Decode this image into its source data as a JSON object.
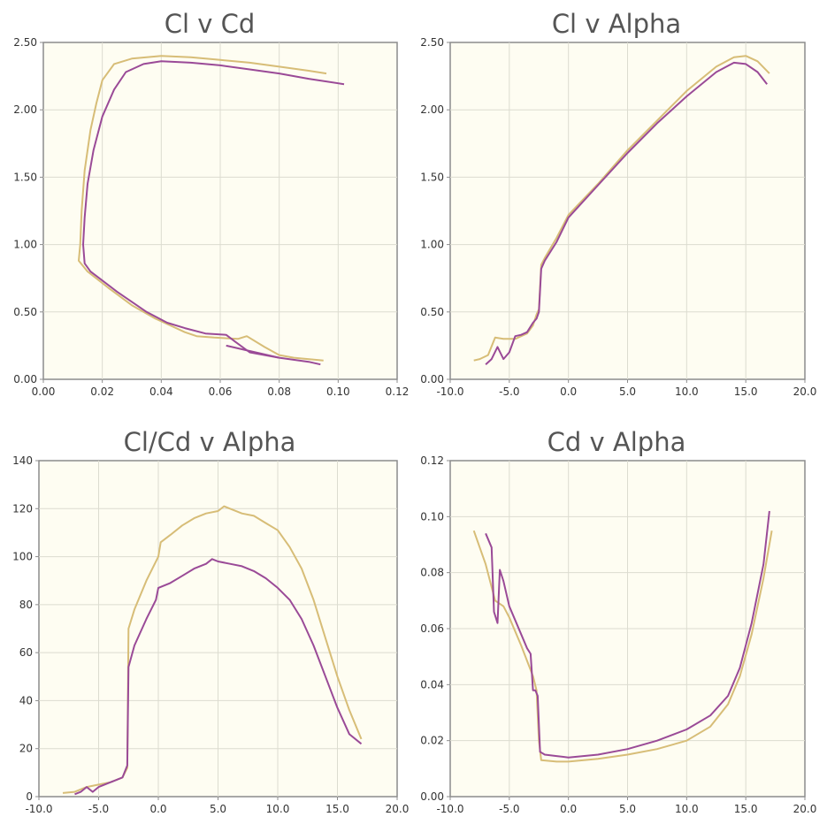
{
  "colors": {
    "plot_bg": "#fefdf2",
    "grid": "#dcdcd0",
    "axis": "#8c8c8c",
    "series_gold": "#d7bd77",
    "series_purple": "#9a4a97"
  },
  "chart_data": [
    {
      "type": "line",
      "title": "Cl v Cd",
      "xlim": [
        0,
        0.12
      ],
      "ylim": [
        0,
        2.5
      ],
      "xticks": [
        "0.00",
        "0.02",
        "0.04",
        "0.06",
        "0.08",
        "0.10",
        "0.12"
      ],
      "yticks": [
        "0.00",
        "0.50",
        "1.00",
        "1.50",
        "2.00",
        "2.50"
      ],
      "grid": true,
      "series": [
        {
          "color": "gold",
          "points": [
            [
              0.095,
              0.14
            ],
            [
              0.085,
              0.16
            ],
            [
              0.08,
              0.18
            ],
            [
              0.075,
              0.24
            ],
            [
              0.069,
              0.32
            ],
            [
              0.066,
              0.3
            ],
            [
              0.058,
              0.31
            ],
            [
              0.052,
              0.32
            ],
            [
              0.048,
              0.35
            ],
            [
              0.043,
              0.4
            ],
            [
              0.038,
              0.45
            ],
            [
              0.03,
              0.55
            ],
            [
              0.022,
              0.68
            ],
            [
              0.015,
              0.8
            ],
            [
              0.012,
              0.88
            ],
            [
              0.0125,
              1.0
            ],
            [
              0.013,
              1.25
            ],
            [
              0.014,
              1.55
            ],
            [
              0.016,
              1.85
            ],
            [
              0.018,
              2.05
            ],
            [
              0.02,
              2.22
            ],
            [
              0.024,
              2.34
            ],
            [
              0.03,
              2.38
            ],
            [
              0.04,
              2.4
            ],
            [
              0.05,
              2.39
            ],
            [
              0.06,
              2.37
            ],
            [
              0.07,
              2.35
            ],
            [
              0.08,
              2.32
            ],
            [
              0.09,
              2.29
            ],
            [
              0.096,
              2.27
            ]
          ]
        },
        {
          "color": "purple",
          "points": [
            [
              0.094,
              0.11
            ],
            [
              0.09,
              0.13
            ],
            [
              0.08,
              0.16
            ],
            [
              0.07,
              0.2
            ],
            [
              0.065,
              0.28
            ],
            [
              0.062,
              0.33
            ],
            [
              0.055,
              0.34
            ],
            [
              0.048,
              0.38
            ],
            [
              0.042,
              0.42
            ],
            [
              0.035,
              0.5
            ],
            [
              0.025,
              0.65
            ],
            [
              0.016,
              0.8
            ],
            [
              0.014,
              0.86
            ],
            [
              0.0135,
              1.0
            ],
            [
              0.014,
              1.2
            ],
            [
              0.015,
              1.45
            ],
            [
              0.017,
              1.7
            ],
            [
              0.02,
              1.95
            ],
            [
              0.024,
              2.15
            ],
            [
              0.028,
              2.28
            ],
            [
              0.034,
              2.34
            ],
            [
              0.04,
              2.36
            ],
            [
              0.05,
              2.35
            ],
            [
              0.06,
              2.33
            ],
            [
              0.07,
              2.3
            ],
            [
              0.08,
              2.27
            ],
            [
              0.09,
              2.23
            ],
            [
              0.102,
              2.19
            ]
          ]
        },
        {
          "color": "purple",
          "points": [
            [
              0.062,
              0.25
            ],
            [
              0.07,
              0.21
            ],
            [
              0.08,
              0.16
            ]
          ]
        }
      ]
    },
    {
      "type": "line",
      "title": "Cl v Alpha",
      "xlim": [
        -10,
        20
      ],
      "ylim": [
        0,
        2.5
      ],
      "xticks": [
        "-10.0",
        "-5.0",
        "0.0",
        "5.0",
        "10.0",
        "15.0",
        "20.0"
      ],
      "yticks": [
        "0.00",
        "0.50",
        "1.00",
        "1.50",
        "2.00",
        "2.50"
      ],
      "grid": true,
      "series": [
        {
          "color": "gold",
          "points": [
            [
              -8.0,
              0.14
            ],
            [
              -7.5,
              0.15
            ],
            [
              -6.8,
              0.18
            ],
            [
              -6.2,
              0.31
            ],
            [
              -5.5,
              0.3
            ],
            [
              -5.0,
              0.3
            ],
            [
              -4.5,
              0.3
            ],
            [
              -4.0,
              0.32
            ],
            [
              -3.5,
              0.34
            ],
            [
              -3.0,
              0.4
            ],
            [
              -2.7,
              0.48
            ],
            [
              -2.5,
              0.52
            ],
            [
              -2.3,
              0.85
            ],
            [
              -2.0,
              0.9
            ],
            [
              -1.0,
              1.05
            ],
            [
              0.0,
              1.22
            ],
            [
              2.5,
              1.45
            ],
            [
              5.0,
              1.7
            ],
            [
              7.5,
              1.92
            ],
            [
              10.0,
              2.14
            ],
            [
              12.5,
              2.32
            ],
            [
              14.0,
              2.39
            ],
            [
              15.0,
              2.4
            ],
            [
              16.0,
              2.36
            ],
            [
              17.0,
              2.27
            ]
          ]
        },
        {
          "color": "purple",
          "points": [
            [
              -7.0,
              0.11
            ],
            [
              -6.5,
              0.15
            ],
            [
              -6.0,
              0.24
            ],
            [
              -5.5,
              0.15
            ],
            [
              -5.0,
              0.2
            ],
            [
              -4.5,
              0.32
            ],
            [
              -4.0,
              0.33
            ],
            [
              -3.5,
              0.35
            ],
            [
              -3.0,
              0.42
            ],
            [
              -2.7,
              0.45
            ],
            [
              -2.5,
              0.5
            ],
            [
              -2.3,
              0.82
            ],
            [
              -2.0,
              0.88
            ],
            [
              -1.0,
              1.02
            ],
            [
              0.0,
              1.2
            ],
            [
              2.5,
              1.44
            ],
            [
              5.0,
              1.68
            ],
            [
              7.5,
              1.9
            ],
            [
              10.0,
              2.1
            ],
            [
              12.5,
              2.28
            ],
            [
              14.0,
              2.35
            ],
            [
              15.0,
              2.34
            ],
            [
              16.0,
              2.28
            ],
            [
              16.8,
              2.19
            ]
          ]
        }
      ]
    },
    {
      "type": "line",
      "title": "Cl/Cd v Alpha",
      "xlim": [
        -10,
        20
      ],
      "ylim": [
        0,
        140
      ],
      "xticks": [
        "-10.0",
        "-5.0",
        "0.0",
        "5.0",
        "10.0",
        "15.0",
        "20.0"
      ],
      "yticks": [
        "0",
        "20",
        "40",
        "60",
        "80",
        "100",
        "120",
        "140"
      ],
      "grid": true,
      "series": [
        {
          "color": "gold",
          "points": [
            [
              -8.0,
              1.5
            ],
            [
              -7.0,
              2
            ],
            [
              -6.0,
              4
            ],
            [
              -5.0,
              5
            ],
            [
              -4.0,
              6
            ],
            [
              -3.0,
              8
            ],
            [
              -2.6,
              12
            ],
            [
              -2.5,
              70
            ],
            [
              -2.0,
              78
            ],
            [
              -1.0,
              90
            ],
            [
              0.0,
              100
            ],
            [
              0.2,
              106
            ],
            [
              1.0,
              109
            ],
            [
              2.0,
              113
            ],
            [
              3.0,
              116
            ],
            [
              4.0,
              118
            ],
            [
              5.0,
              119
            ],
            [
              5.5,
              121
            ],
            [
              6.0,
              120
            ],
            [
              7.0,
              118
            ],
            [
              8.0,
              117
            ],
            [
              9.0,
              114
            ],
            [
              10.0,
              111
            ],
            [
              11.0,
              104
            ],
            [
              12.0,
              95
            ],
            [
              13.0,
              82
            ],
            [
              14.0,
              66
            ],
            [
              15.0,
              50
            ],
            [
              16.0,
              36
            ],
            [
              17.0,
              24
            ]
          ]
        },
        {
          "color": "purple",
          "points": [
            [
              -7.0,
              1
            ],
            [
              -6.5,
              2
            ],
            [
              -6.0,
              4
            ],
            [
              -5.5,
              2
            ],
            [
              -5.0,
              4
            ],
            [
              -4.0,
              6
            ],
            [
              -3.0,
              8
            ],
            [
              -2.6,
              13
            ],
            [
              -2.5,
              54
            ],
            [
              -2.0,
              63
            ],
            [
              -1.0,
              74
            ],
            [
              -0.2,
              82
            ],
            [
              0.0,
              87
            ],
            [
              1.0,
              89
            ],
            [
              2.0,
              92
            ],
            [
              3.0,
              95
            ],
            [
              4.0,
              97
            ],
            [
              4.5,
              99
            ],
            [
              5.0,
              98
            ],
            [
              6.0,
              97
            ],
            [
              7.0,
              96
            ],
            [
              8.0,
              94
            ],
            [
              9.0,
              91
            ],
            [
              10.0,
              87
            ],
            [
              11.0,
              82
            ],
            [
              12.0,
              74
            ],
            [
              13.0,
              63
            ],
            [
              14.0,
              50
            ],
            [
              15.0,
              37
            ],
            [
              16.0,
              26
            ],
            [
              17.0,
              22
            ]
          ]
        }
      ]
    },
    {
      "type": "line",
      "title": "Cd v Alpha",
      "xlim": [
        -10,
        20
      ],
      "ylim": [
        0,
        0.12
      ],
      "xticks": [
        "-10.0",
        "-5.0",
        "0.0",
        "5.0",
        "10.0",
        "15.0",
        "20.0"
      ],
      "yticks": [
        "0.00",
        "0.02",
        "0.04",
        "0.06",
        "0.08",
        "0.10",
        "0.12"
      ],
      "grid": true,
      "series": [
        {
          "color": "gold",
          "points": [
            [
              -8.0,
              0.095
            ],
            [
              -7.0,
              0.083
            ],
            [
              -6.2,
              0.07
            ],
            [
              -5.5,
              0.068
            ],
            [
              -5.0,
              0.064
            ],
            [
              -4.0,
              0.054
            ],
            [
              -3.0,
              0.043
            ],
            [
              -2.7,
              0.038
            ],
            [
              -2.5,
              0.02
            ],
            [
              -2.3,
              0.013
            ],
            [
              -1.0,
              0.0125
            ],
            [
              0.0,
              0.0125
            ],
            [
              2.5,
              0.0135
            ],
            [
              5.0,
              0.015
            ],
            [
              7.5,
              0.017
            ],
            [
              10.0,
              0.02
            ],
            [
              12.0,
              0.025
            ],
            [
              13.5,
              0.033
            ],
            [
              14.5,
              0.043
            ],
            [
              15.5,
              0.058
            ],
            [
              16.5,
              0.078
            ],
            [
              17.2,
              0.095
            ]
          ]
        },
        {
          "color": "purple",
          "points": [
            [
              -7.0,
              0.094
            ],
            [
              -6.5,
              0.089
            ],
            [
              -6.3,
              0.066
            ],
            [
              -6.0,
              0.062
            ],
            [
              -5.8,
              0.081
            ],
            [
              -5.5,
              0.077
            ],
            [
              -5.0,
              0.068
            ],
            [
              -4.0,
              0.058
            ],
            [
              -3.5,
              0.053
            ],
            [
              -3.2,
              0.051
            ],
            [
              -3.0,
              0.038
            ],
            [
              -2.8,
              0.038
            ],
            [
              -2.6,
              0.036
            ],
            [
              -2.4,
              0.016
            ],
            [
              -2.0,
              0.015
            ],
            [
              -1.0,
              0.0145
            ],
            [
              0.0,
              0.014
            ],
            [
              2.5,
              0.015
            ],
            [
              5.0,
              0.017
            ],
            [
              7.5,
              0.02
            ],
            [
              10.0,
              0.024
            ],
            [
              12.0,
              0.029
            ],
            [
              13.5,
              0.036
            ],
            [
              14.5,
              0.046
            ],
            [
              15.5,
              0.062
            ],
            [
              16.5,
              0.083
            ],
            [
              17.0,
              0.102
            ]
          ]
        }
      ]
    }
  ]
}
